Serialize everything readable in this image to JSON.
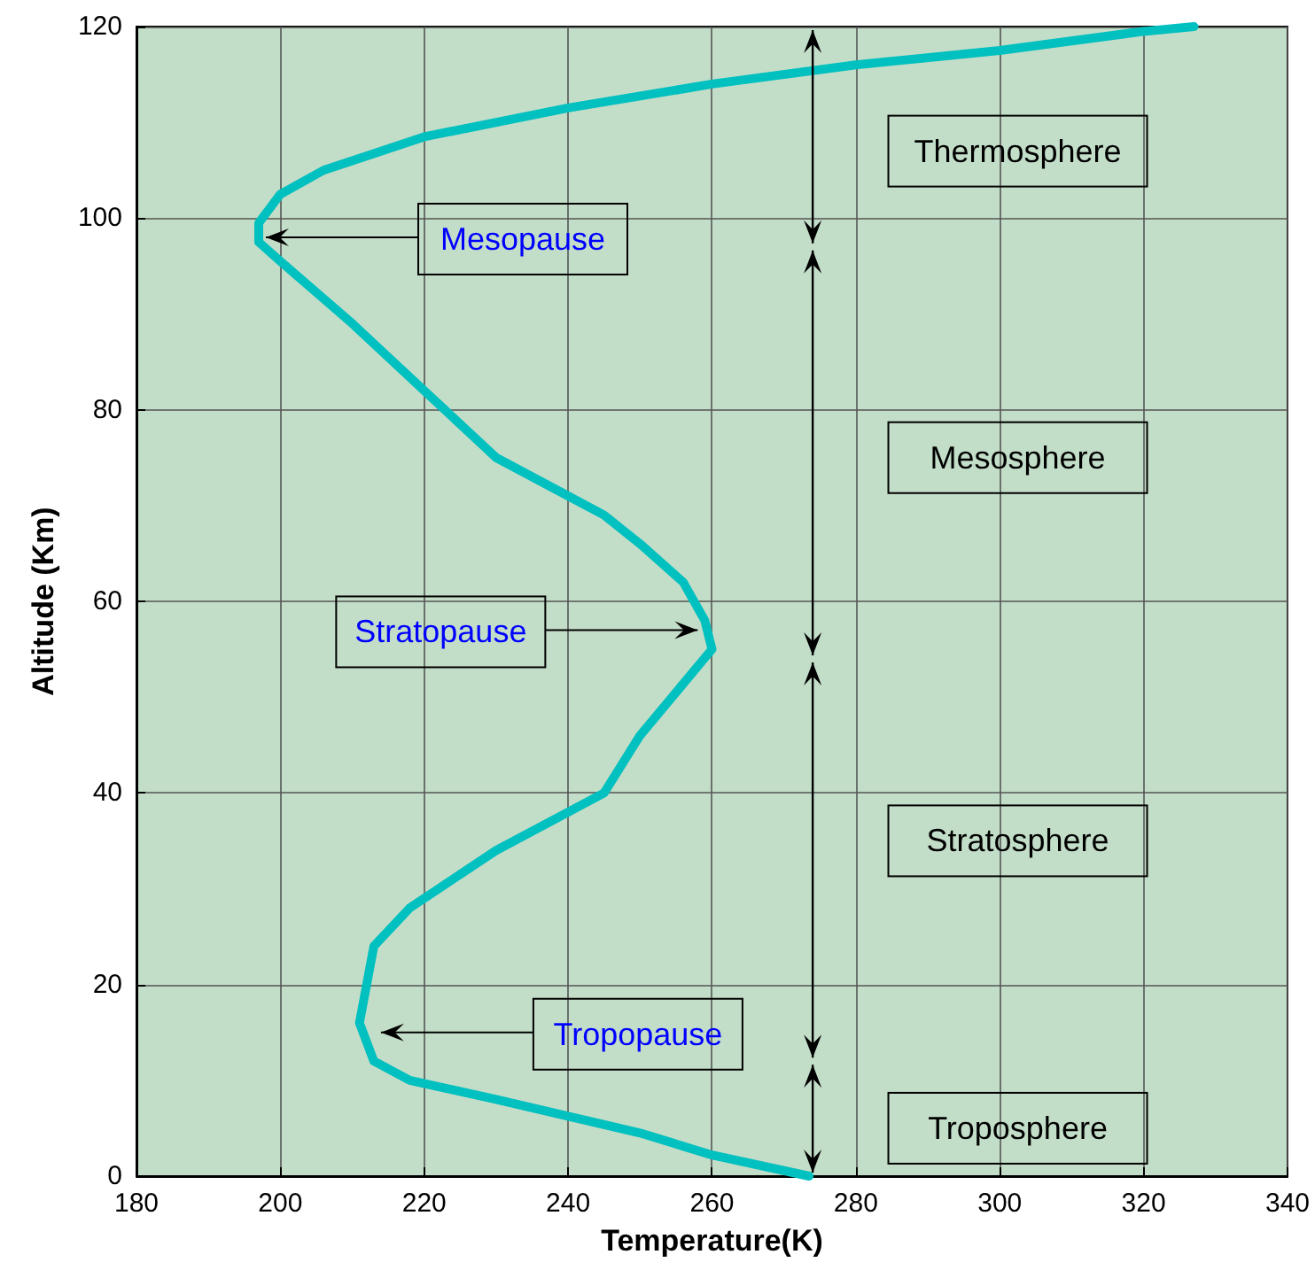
{
  "chart_data": {
    "type": "line",
    "xlabel": "Temperature(K)",
    "ylabel": "Altitude (Km)",
    "x": [
      273.5,
      260,
      250,
      230,
      218,
      213,
      211,
      212,
      213,
      218,
      230,
      245,
      250,
      260,
      259,
      256,
      250,
      245,
      240,
      230,
      220,
      210,
      200,
      197,
      197,
      200,
      206,
      210,
      220,
      240,
      260,
      280,
      300,
      320,
      327
    ],
    "series": [
      {
        "color": "#00c0c0",
        "values": [
          0,
          2.2,
          4.5,
          8,
          10,
          12,
          16,
          20,
          24,
          28,
          34,
          40,
          46,
          55,
          58,
          62,
          66,
          69,
          71,
          75,
          82,
          89,
          95.5,
          97.5,
          99.5,
          102.5,
          105,
          106,
          108.5,
          111.5,
          114,
          116,
          117.5,
          119.5,
          120
        ]
      }
    ],
    "xlim": [
      180,
      340
    ],
    "xticks": [
      180,
      200,
      220,
      240,
      260,
      280,
      300,
      320,
      340
    ],
    "ylim": [
      0,
      120
    ],
    "yticks": [
      0,
      20,
      40,
      60,
      80,
      100,
      120
    ],
    "grid": true,
    "marker": "none",
    "line_style": "solid",
    "annotations": [
      {
        "text": "Mesopause",
        "x": 197,
        "y": 98
      },
      {
        "text": "Stratopause",
        "x": 259,
        "y": 57
      },
      {
        "text": "Tropopause",
        "x": 213,
        "y": 15
      },
      "Thermosphere",
      "Mesosphere",
      "Stratosphere",
      "Troposphere"
    ]
  }
}
